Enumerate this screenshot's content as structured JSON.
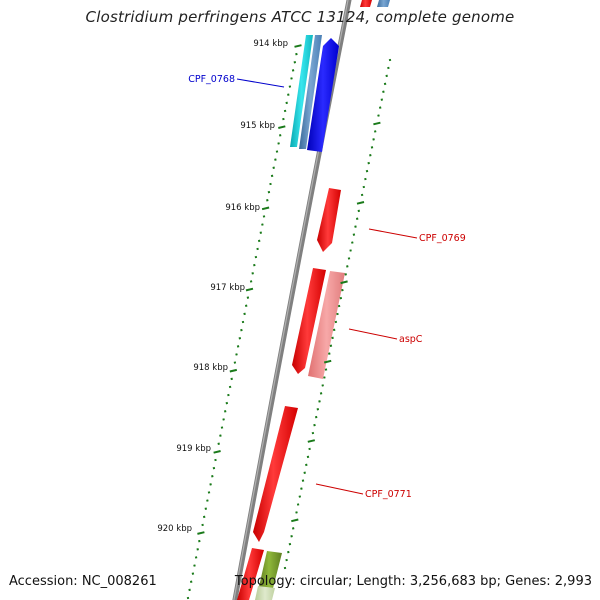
{
  "title": "Clostridium perfringens ATCC 13124, complete genome",
  "accession": "Accession: NC_008261",
  "topology_summary": "Topology: circular; Length: 3,256,683 bp; Genes: 2,993",
  "ruler": [
    {
      "label": "914 kbp"
    },
    {
      "label": "915 kbp"
    },
    {
      "label": "916 kbp"
    },
    {
      "label": "917 kbp"
    },
    {
      "label": "918 kbp"
    },
    {
      "label": "919 kbp"
    },
    {
      "label": "920 kbp"
    }
  ],
  "gene_labels": [
    {
      "name": "CPF_0768",
      "color": "#0000cc"
    },
    {
      "name": "CPF_0769",
      "color": "#cc0000"
    },
    {
      "name": "aspC",
      "color": "#cc0000"
    },
    {
      "name": "CPF_0771",
      "color": "#cc0000"
    }
  ],
  "colors": {
    "backbone": "#808080",
    "tick": "#1a7a1a",
    "forward_gene": "#ee0000",
    "blue_gene": "#0000ee",
    "cyan_gene": "#10c8d0",
    "steel_gene": "#4a7fb5",
    "pink_gene": "#ee8a8a",
    "olive_gene": "#6b8e23"
  }
}
